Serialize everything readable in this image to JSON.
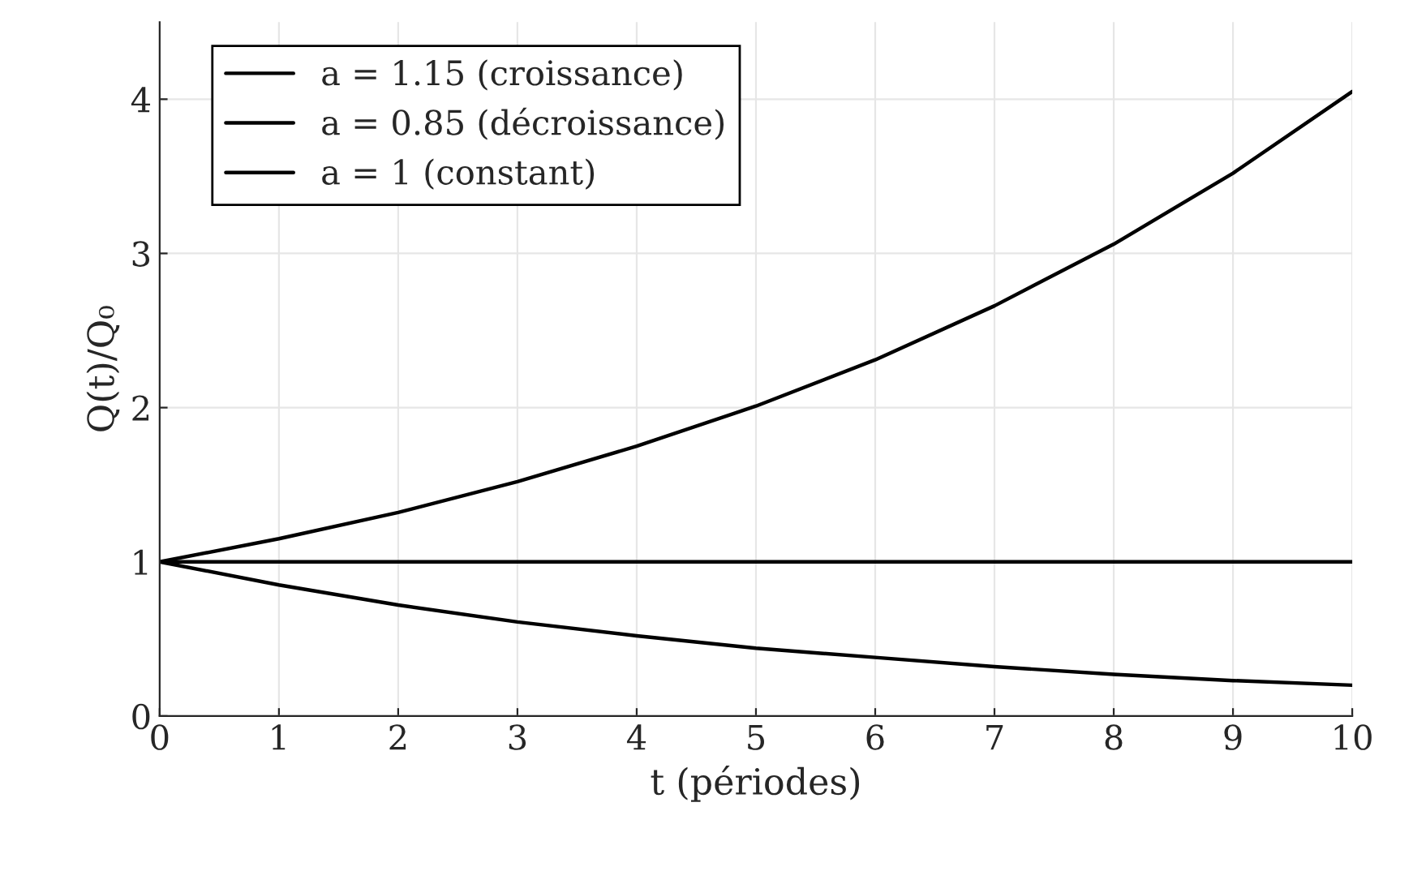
{
  "chart_data": {
    "type": "line",
    "xlabel": "t (périodes)",
    "ylabel": "Q(t)/Q₀",
    "x": [
      0,
      1,
      2,
      3,
      4,
      5,
      6,
      7,
      8,
      9,
      10
    ],
    "series": [
      {
        "name": "a = 1.15 (croissance)",
        "color": "#000000",
        "values": [
          1,
          1.15,
          1.32,
          1.52,
          1.75,
          2.01,
          2.31,
          2.66,
          3.06,
          3.52,
          4.05
        ]
      },
      {
        "name": "a = 0.85 (décroissance)",
        "color": "#000000",
        "values": [
          1,
          0.85,
          0.72,
          0.61,
          0.52,
          0.44,
          0.38,
          0.32,
          0.27,
          0.23,
          0.2
        ]
      },
      {
        "name": "a = 1 (constant)",
        "color": "#000000",
        "values": [
          1,
          1,
          1,
          1,
          1,
          1,
          1,
          1,
          1,
          1,
          1
        ]
      }
    ],
    "xlim": [
      0,
      10
    ],
    "ylim": [
      0,
      4.5
    ],
    "xticks": [
      0,
      1,
      2,
      3,
      4,
      5,
      6,
      7,
      8,
      9,
      10
    ],
    "yticks": [
      0,
      1,
      2,
      3,
      4
    ],
    "grid": true,
    "legend": "top left",
    "marker": "none",
    "line_style": "solid"
  }
}
